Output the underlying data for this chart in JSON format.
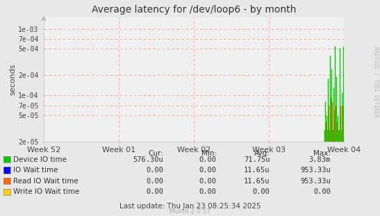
{
  "title": "Average latency for /dev/loop6 - by month",
  "ylabel": "seconds",
  "watermark": "RRDTOOL / TOBI OETIKER",
  "munin_version": "Munin 2.0.57",
  "last_update": "Last update: Thu Jan 23 08:25:34 2025",
  "xtick_labels": [
    "Week 52",
    "Week 01",
    "Week 02",
    "Week 03",
    "Week 04"
  ],
  "ylim_low": 2e-05,
  "ylim_high": 0.0015,
  "yticks": [
    2e-05,
    5e-05,
    7e-05,
    0.0001,
    0.0002,
    0.0005,
    0.0007,
    0.001
  ],
  "ytick_labels": [
    "2e-05",
    "5e-05",
    "7e-05",
    "1e-04",
    "2e-04",
    "5e-04",
    "7e-04",
    "1e-03"
  ],
  "background_color": "#e8e8e8",
  "plot_background": "#f0f0f0",
  "grid_color": "#ffaaaa",
  "legend": [
    {
      "label": "Device IO time",
      "color": "#00cc00"
    },
    {
      "label": "IO Wait time",
      "color": "#0000ff"
    },
    {
      "label": "Read IO Wait time",
      "color": "#ff6600"
    },
    {
      "label": "Write IO Wait time",
      "color": "#ffcc00"
    }
  ],
  "legend_stats": {
    "headers": [
      "Cur:",
      "Min:",
      "Avg:",
      "Max:"
    ],
    "rows": [
      [
        "576.30u",
        "0.00",
        "71.75u",
        "3.83m"
      ],
      [
        "0.00",
        "0.00",
        "11.65u",
        "953.33u"
      ],
      [
        "0.00",
        "0.00",
        "11.65u",
        "953.33u"
      ],
      [
        "0.00",
        "0.00",
        "0.00",
        "0.00"
      ]
    ]
  },
  "green_spikes": {
    "x": [
      0.934,
      0.938,
      0.942,
      0.946,
      0.95,
      0.954,
      0.958,
      0.962,
      0.966,
      0.97,
      0.974,
      0.978,
      0.982,
      0.986,
      0.99,
      0.994,
      0.998
    ],
    "h": [
      3e-05,
      8e-05,
      5e-05,
      0.00018,
      3e-05,
      0.0004,
      0.00025,
      3e-05,
      0.00013,
      0.00055,
      0.00019,
      5e-05,
      3e-05,
      0.00052,
      3e-05,
      0.00011,
      0.00054
    ]
  },
  "orange_spikes": {
    "x": [
      0.936,
      0.94,
      0.944,
      0.948,
      0.952,
      0.956,
      0.96,
      0.964,
      0.968,
      0.972,
      0.976,
      0.98,
      0.984,
      0.988,
      0.992,
      0.996
    ],
    "h": [
      3e-05,
      4e-05,
      3e-05,
      7e-05,
      3e-05,
      9e-05,
      8e-05,
      3e-05,
      6e-05,
      7e-05,
      4e-05,
      3e-05,
      3e-05,
      7e-05,
      3e-05,
      7e-05
    ]
  },
  "spike_color_green": "#00cc00",
  "spike_color_orange": "#ff6600"
}
